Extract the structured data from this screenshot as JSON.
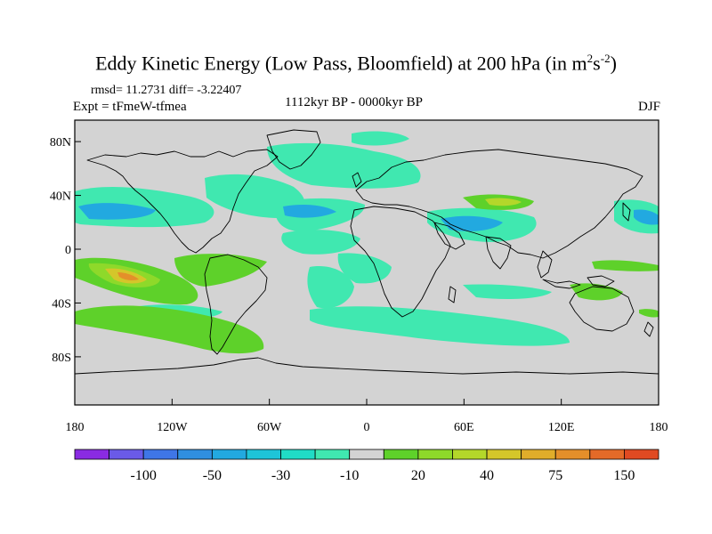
{
  "title": {
    "main": "Eddy Kinetic Energy (Low Pass, Bloomfield) at 200 hPa (in m",
    "sup1": "2",
    "mid": "s",
    "sup2": "-2",
    "end": ")"
  },
  "stats": "rmsd= 11.2731 diff= -3.22407",
  "experiment": "Expt = tFmeW-tfmea",
  "period": "1112kyr BP - 0000kyr BP",
  "season": "DJF",
  "map": {
    "land_color": "#d3d3d3",
    "lat_ticks": [
      {
        "value": 80,
        "label": "80N"
      },
      {
        "value": 40,
        "label": "40N"
      },
      {
        "value": 0,
        "label": "0"
      },
      {
        "value": -40,
        "label": "40S"
      },
      {
        "value": -80,
        "label": "80S"
      }
    ],
    "lon_ticks": [
      {
        "value": -180,
        "label": "180"
      },
      {
        "value": -120,
        "label": "120W"
      },
      {
        "value": -60,
        "label": "60W"
      },
      {
        "value": 0,
        "label": "0"
      },
      {
        "value": 60,
        "label": "60E"
      },
      {
        "value": 120,
        "label": "120E"
      },
      {
        "value": 180,
        "label": "180"
      }
    ]
  },
  "colorbar": {
    "colors": [
      "#8a2be2",
      "#6a5ae8",
      "#3f76e6",
      "#2f8fe0",
      "#22a9e0",
      "#1ec4d8",
      "#20dcc6",
      "#40e8b0",
      "#d3d3d3",
      "#5ed12a",
      "#8ed92a",
      "#b4d72a",
      "#d4c62a",
      "#e0ad2a",
      "#e48f2a",
      "#e46a28",
      "#e04a22"
    ],
    "labels": [
      {
        "boundary": 2,
        "text": "-100"
      },
      {
        "boundary": 4,
        "text": "-50"
      },
      {
        "boundary": 6,
        "text": "-30"
      },
      {
        "boundary": 8,
        "text": "-10"
      },
      {
        "boundary": 10,
        "text": "20"
      },
      {
        "boundary": 12,
        "text": "40"
      },
      {
        "boundary": 14,
        "text": "75"
      },
      {
        "boundary": 16,
        "text": "150"
      }
    ]
  }
}
